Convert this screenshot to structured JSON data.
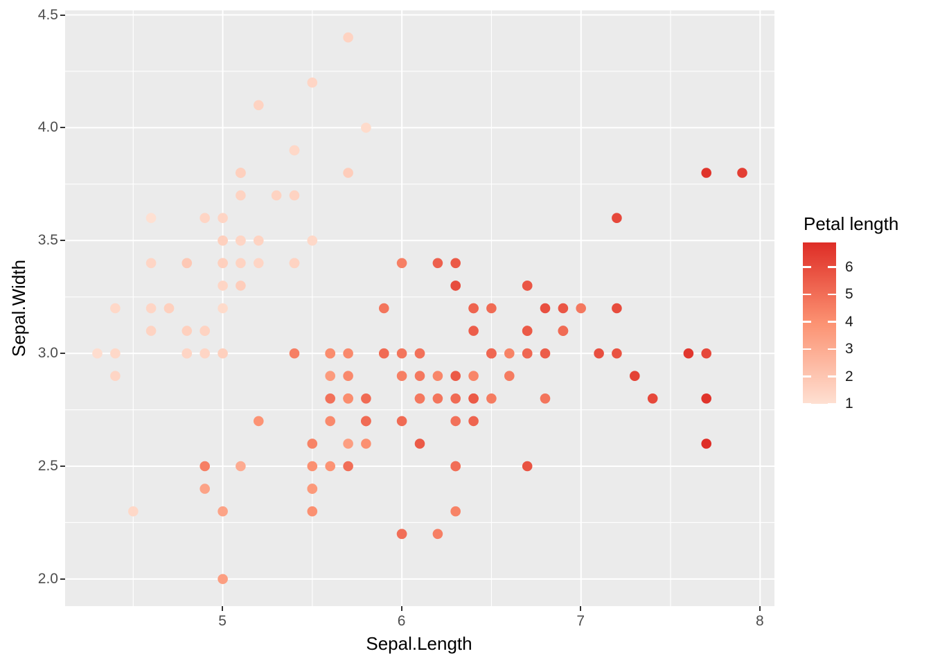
{
  "style": {
    "figure_background": "#FFFFFF",
    "panel_background": "#EBEBEB",
    "grid_color": "#FFFFFF",
    "axis_tick_color": "#333333",
    "tick_label_color": "#4D4D4D",
    "title_color": "#000000",
    "legend_tick_mark_color": "#FFFFFF"
  },
  "chart_data": {
    "type": "scatter",
    "title": "",
    "xlabel": "Sepal.Length",
    "ylabel": "Sepal.Width",
    "color_label": "Petal length",
    "xlim": [
      4.12,
      8.08
    ],
    "ylim": [
      1.88,
      4.52
    ],
    "x_major_ticks": [
      5,
      6,
      7,
      8
    ],
    "x_tick_labels": [
      "5",
      "6",
      "7",
      "8"
    ],
    "x_minor_ticks": [
      4.5,
      5.5,
      6.5,
      7.5
    ],
    "y_major_ticks": [
      2.0,
      2.5,
      3.0,
      3.5,
      4.0,
      4.5
    ],
    "y_tick_labels": [
      "2.0",
      "2.5",
      "3.0",
      "3.5",
      "4.0",
      "4.5"
    ],
    "y_minor_ticks": [
      2.25,
      2.75,
      3.25,
      3.75,
      4.25
    ],
    "grid": true,
    "legend_position": "right",
    "color_scale": {
      "limits": [
        1.0,
        6.9
      ],
      "tick_values": [
        1,
        2,
        3,
        4,
        5,
        6
      ],
      "tick_labels": [
        "1",
        "2",
        "3",
        "4",
        "5",
        "6"
      ],
      "palette": [
        "#FEE0D2",
        "#FC9272",
        "#DE2D26"
      ]
    },
    "point_fields": [
      "sepal_length",
      "sepal_width",
      "petal_length"
    ],
    "points": [
      [
        5.1,
        3.5,
        1.4
      ],
      [
        4.9,
        3.0,
        1.4
      ],
      [
        4.7,
        3.2,
        1.3
      ],
      [
        4.6,
        3.1,
        1.5
      ],
      [
        5.0,
        3.6,
        1.4
      ],
      [
        5.4,
        3.9,
        1.7
      ],
      [
        4.6,
        3.4,
        1.4
      ],
      [
        5.0,
        3.4,
        1.5
      ],
      [
        4.4,
        2.9,
        1.4
      ],
      [
        4.9,
        3.1,
        1.5
      ],
      [
        5.4,
        3.7,
        1.5
      ],
      [
        4.8,
        3.4,
        1.6
      ],
      [
        4.8,
        3.0,
        1.4
      ],
      [
        4.3,
        3.0,
        1.1
      ],
      [
        5.8,
        4.0,
        1.2
      ],
      [
        5.7,
        4.4,
        1.5
      ],
      [
        5.4,
        3.9,
        1.3
      ],
      [
        5.1,
        3.5,
        1.4
      ],
      [
        5.7,
        3.8,
        1.7
      ],
      [
        5.1,
        3.8,
        1.5
      ],
      [
        5.4,
        3.4,
        1.7
      ],
      [
        5.1,
        3.7,
        1.5
      ],
      [
        4.6,
        3.6,
        1.0
      ],
      [
        5.1,
        3.3,
        1.7
      ],
      [
        4.8,
        3.4,
        1.9
      ],
      [
        5.0,
        3.0,
        1.6
      ],
      [
        5.0,
        3.4,
        1.6
      ],
      [
        5.2,
        3.5,
        1.5
      ],
      [
        5.2,
        3.4,
        1.4
      ],
      [
        4.7,
        3.2,
        1.6
      ],
      [
        4.8,
        3.1,
        1.6
      ],
      [
        5.4,
        3.4,
        1.5
      ],
      [
        5.2,
        4.1,
        1.5
      ],
      [
        5.5,
        4.2,
        1.4
      ],
      [
        4.9,
        3.1,
        1.5
      ],
      [
        5.0,
        3.2,
        1.2
      ],
      [
        5.5,
        3.5,
        1.3
      ],
      [
        4.9,
        3.6,
        1.4
      ],
      [
        4.4,
        3.0,
        1.3
      ],
      [
        5.1,
        3.4,
        1.5
      ],
      [
        5.0,
        3.5,
        1.3
      ],
      [
        4.5,
        2.3,
        1.3
      ],
      [
        4.4,
        3.2,
        1.3
      ],
      [
        5.0,
        3.5,
        1.6
      ],
      [
        5.1,
        3.8,
        1.9
      ],
      [
        4.8,
        3.0,
        1.4
      ],
      [
        5.1,
        3.8,
        1.6
      ],
      [
        4.6,
        3.2,
        1.4
      ],
      [
        5.3,
        3.7,
        1.5
      ],
      [
        5.0,
        3.3,
        1.4
      ],
      [
        7.0,
        3.2,
        4.7
      ],
      [
        6.4,
        3.2,
        4.5
      ],
      [
        6.9,
        3.1,
        4.9
      ],
      [
        5.5,
        2.3,
        4.0
      ],
      [
        6.5,
        2.8,
        4.6
      ],
      [
        5.7,
        2.8,
        4.5
      ],
      [
        6.3,
        3.3,
        4.7
      ],
      [
        4.9,
        2.4,
        3.3
      ],
      [
        6.6,
        2.9,
        4.6
      ],
      [
        5.2,
        2.7,
        3.9
      ],
      [
        5.0,
        2.0,
        3.5
      ],
      [
        5.9,
        3.0,
        4.2
      ],
      [
        6.0,
        2.2,
        4.0
      ],
      [
        6.1,
        2.9,
        4.7
      ],
      [
        5.6,
        2.9,
        3.6
      ],
      [
        6.7,
        3.1,
        4.4
      ],
      [
        5.6,
        3.0,
        4.5
      ],
      [
        5.8,
        2.7,
        4.1
      ],
      [
        6.2,
        2.2,
        4.5
      ],
      [
        5.6,
        2.5,
        3.9
      ],
      [
        5.9,
        3.2,
        4.8
      ],
      [
        6.1,
        2.8,
        4.0
      ],
      [
        6.3,
        2.5,
        4.9
      ],
      [
        6.1,
        2.8,
        4.7
      ],
      [
        6.4,
        2.9,
        4.3
      ],
      [
        6.6,
        3.0,
        4.4
      ],
      [
        6.8,
        2.8,
        4.8
      ],
      [
        6.7,
        3.0,
        5.0
      ],
      [
        6.0,
        2.9,
        4.5
      ],
      [
        5.7,
        2.6,
        3.5
      ],
      [
        5.5,
        2.4,
        3.8
      ],
      [
        5.5,
        2.4,
        3.7
      ],
      [
        5.8,
        2.7,
        3.9
      ],
      [
        6.0,
        2.7,
        5.1
      ],
      [
        5.4,
        3.0,
        4.5
      ],
      [
        6.0,
        3.4,
        4.5
      ],
      [
        6.7,
        3.1,
        4.7
      ],
      [
        6.3,
        2.3,
        4.4
      ],
      [
        5.6,
        3.0,
        4.1
      ],
      [
        5.5,
        2.5,
        4.0
      ],
      [
        5.5,
        2.6,
        4.4
      ],
      [
        6.1,
        3.0,
        4.6
      ],
      [
        5.8,
        2.6,
        4.0
      ],
      [
        5.0,
        2.3,
        3.3
      ],
      [
        5.6,
        2.7,
        4.2
      ],
      [
        5.7,
        3.0,
        4.2
      ],
      [
        5.7,
        2.9,
        4.2
      ],
      [
        6.2,
        2.9,
        4.3
      ],
      [
        5.1,
        2.5,
        3.0
      ],
      [
        5.7,
        2.8,
        4.1
      ],
      [
        6.3,
        3.3,
        6.0
      ],
      [
        5.8,
        2.7,
        5.1
      ],
      [
        7.1,
        3.0,
        5.9
      ],
      [
        6.3,
        2.9,
        5.6
      ],
      [
        6.5,
        3.0,
        5.8
      ],
      [
        7.6,
        3.0,
        6.6
      ],
      [
        4.9,
        2.5,
        4.5
      ],
      [
        7.3,
        2.9,
        6.3
      ],
      [
        6.7,
        2.5,
        5.8
      ],
      [
        7.2,
        3.6,
        6.1
      ],
      [
        6.5,
        3.2,
        5.1
      ],
      [
        6.4,
        2.7,
        5.3
      ],
      [
        6.8,
        3.0,
        5.5
      ],
      [
        5.7,
        2.5,
        5.0
      ],
      [
        5.8,
        2.8,
        5.1
      ],
      [
        6.4,
        3.2,
        5.3
      ],
      [
        6.5,
        3.0,
        5.5
      ],
      [
        7.7,
        3.8,
        6.7
      ],
      [
        7.7,
        2.6,
        6.9
      ],
      [
        6.0,
        2.2,
        5.0
      ],
      [
        6.9,
        3.2,
        5.7
      ],
      [
        5.6,
        2.8,
        4.9
      ],
      [
        7.7,
        2.8,
        6.7
      ],
      [
        6.3,
        2.7,
        4.9
      ],
      [
        6.7,
        3.3,
        5.7
      ],
      [
        7.2,
        3.2,
        6.0
      ],
      [
        6.2,
        2.8,
        4.8
      ],
      [
        6.1,
        3.0,
        4.9
      ],
      [
        6.4,
        2.8,
        5.6
      ],
      [
        7.2,
        3.0,
        5.8
      ],
      [
        7.4,
        2.8,
        6.1
      ],
      [
        7.9,
        3.8,
        6.4
      ],
      [
        6.4,
        2.8,
        5.6
      ],
      [
        6.3,
        2.8,
        5.1
      ],
      [
        6.1,
        2.6,
        5.6
      ],
      [
        7.7,
        3.0,
        6.1
      ],
      [
        6.3,
        3.4,
        5.6
      ],
      [
        6.4,
        3.1,
        5.5
      ],
      [
        6.0,
        3.0,
        4.8
      ],
      [
        6.9,
        3.1,
        5.4
      ],
      [
        6.7,
        3.1,
        5.6
      ],
      [
        6.9,
        3.1,
        5.1
      ],
      [
        5.8,
        2.7,
        5.1
      ],
      [
        6.8,
        3.2,
        5.9
      ],
      [
        6.7,
        3.3,
        5.7
      ],
      [
        6.7,
        3.0,
        5.2
      ],
      [
        6.3,
        2.5,
        5.0
      ],
      [
        6.5,
        3.0,
        5.2
      ],
      [
        6.2,
        3.4,
        5.4
      ],
      [
        5.9,
        3.0,
        5.1
      ]
    ]
  }
}
